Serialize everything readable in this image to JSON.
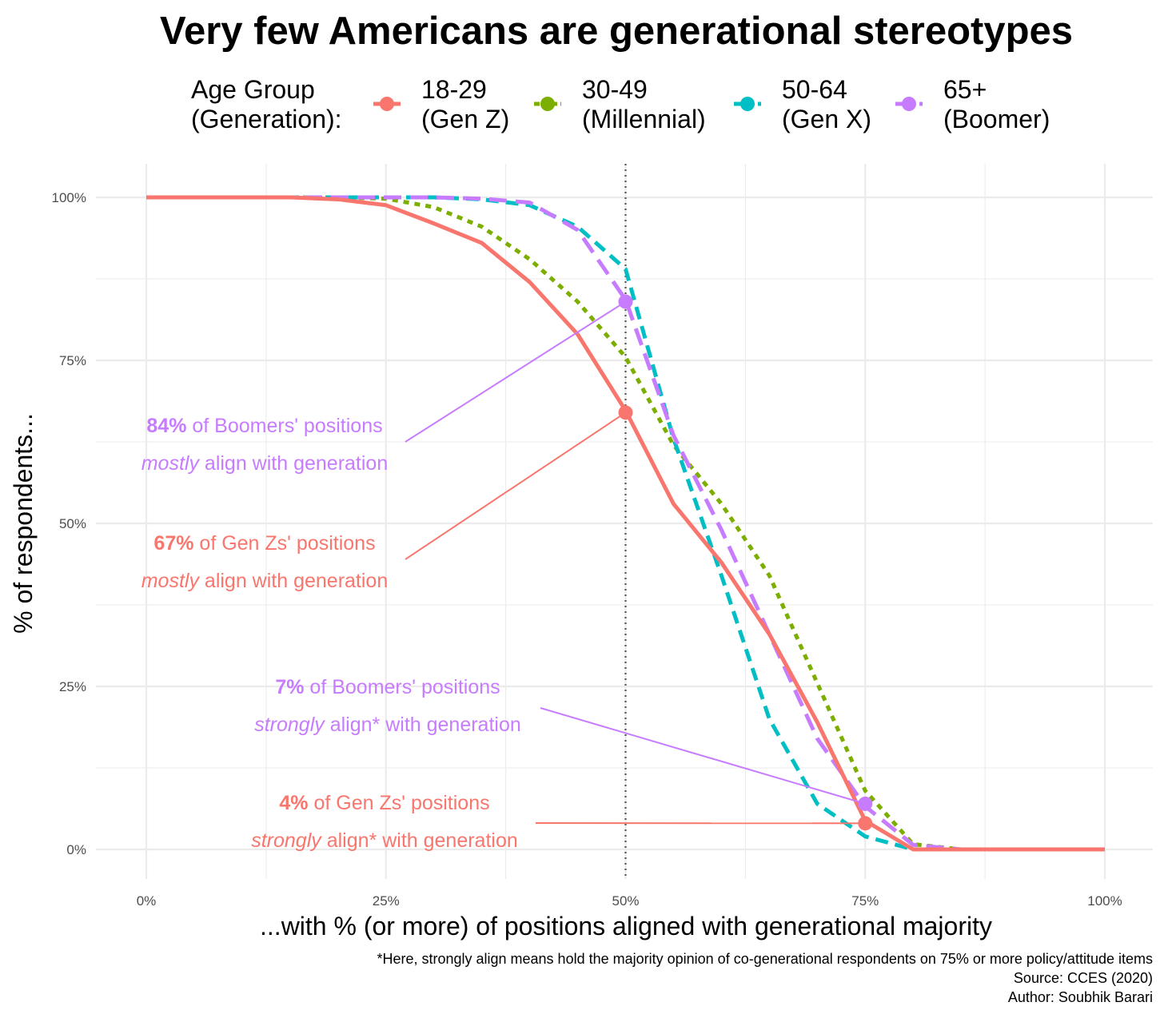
{
  "chart_data": {
    "type": "line",
    "title": "Very few Americans are generational stereotypes",
    "xlabel": "...with % (or more) of positions aligned with generational majority",
    "ylabel": "% of respondents...",
    "xlim": [
      0,
      100
    ],
    "ylim": [
      0,
      100
    ],
    "grid": true,
    "legend_position": "top",
    "legend_title": [
      "Age Group",
      "(Generation):"
    ],
    "x_ticks": [
      "0%",
      "25%",
      "50%",
      "75%",
      "100%"
    ],
    "y_ticks": [
      "0%",
      "25%",
      "50%",
      "75%",
      "100%"
    ],
    "reference_line_x": 50,
    "x": [
      0,
      5,
      10,
      15,
      20,
      25,
      30,
      35,
      40,
      45,
      50,
      55,
      60,
      65,
      70,
      75,
      80,
      85,
      90,
      95,
      100
    ],
    "series": [
      {
        "name": "18-29 (Gen Z)",
        "label": [
          "18-29",
          "(Gen Z)"
        ],
        "color": "#F8766D",
        "style": "solid",
        "values": [
          100,
          100,
          100,
          100,
          99.7,
          98.8,
          96,
          93,
          87,
          79,
          67.3,
          53,
          44,
          33,
          19.5,
          4.4,
          0,
          0,
          0,
          0,
          0
        ]
      },
      {
        "name": "30-49 (Millennial)",
        "label": [
          "30-49",
          "(Millennial)"
        ],
        "color": "#7CAE00",
        "style": "dotted",
        "values": [
          100,
          100,
          100,
          100,
          100,
          99.8,
          98.5,
          95.5,
          90.5,
          84,
          75.5,
          62,
          53,
          42,
          25.5,
          9,
          0.8,
          0,
          0,
          0,
          0
        ]
      },
      {
        "name": "50-64 (Gen X)",
        "label": [
          "50-64",
          "(Gen X)"
        ],
        "color": "#00BFC4",
        "style": "dashed",
        "values": [
          100,
          100,
          100,
          100,
          100,
          100,
          100,
          99.7,
          98.8,
          95.5,
          89,
          63,
          42,
          20,
          7,
          2,
          0,
          0,
          0,
          0,
          0
        ]
      },
      {
        "name": "65+ (Boomer)",
        "label": [
          "65+",
          "(Boomer)"
        ],
        "color": "#C77CFF",
        "style": "longdash",
        "values": [
          100,
          100,
          100,
          100,
          100,
          100,
          100,
          99.8,
          99.2,
          95,
          84.3,
          63.5,
          49,
          33,
          17,
          6.6,
          0.7,
          0,
          0,
          0,
          0
        ]
      }
    ],
    "highlight_points": [
      {
        "series": "65+ (Boomer)",
        "x": 50,
        "y": 84
      },
      {
        "series": "18-29 (Gen Z)",
        "x": 50,
        "y": 67
      },
      {
        "series": "65+ (Boomer)",
        "x": 75,
        "y": 7
      },
      {
        "series": "18-29 (Gen Z)",
        "x": 75,
        "y": 4
      }
    ],
    "annotations": [
      {
        "series": "65+ (Boomer)",
        "bold": "84%",
        "line1": " of Boomers' positions",
        "italic": "mostly",
        "line2": " align with generation"
      },
      {
        "series": "18-29 (Gen Z)",
        "bold": "67%",
        "line1": " of Gen Zs' positions",
        "italic": "mostly",
        "line2": " align with generation"
      },
      {
        "series": "65+ (Boomer)",
        "bold": "7%",
        "line1": " of Boomers' positions",
        "italic": "strongly",
        "line2": " align* with generation"
      },
      {
        "series": "18-29 (Gen Z)",
        "bold": "4%",
        "line1": " of Gen Zs' positions",
        "italic": "strongly",
        "line2": " align* with generation"
      }
    ],
    "caption": [
      "*Here, strongly align means hold the majority opinion of co-generational respondents on 75% or more policy/attitude items",
      "Source: CCES (2020)",
      "Author: Soubhik Barari"
    ]
  }
}
